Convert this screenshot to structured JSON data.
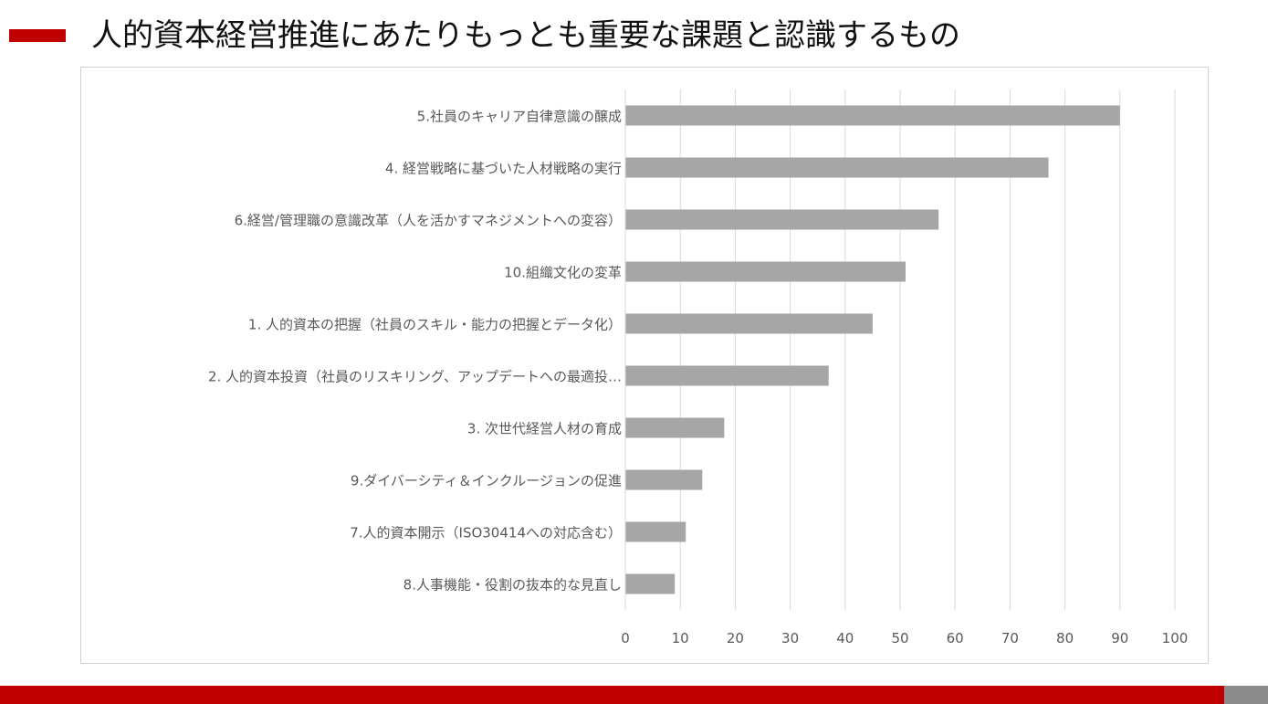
{
  "page": {
    "title": "人的資本経営推進にあたりもっとも重要な課題と認識するもの"
  },
  "colors": {
    "accent": "#c00000",
    "bar": "#a6a6a6",
    "grid": "#d9d9d9",
    "text": "#595959",
    "footer_gray": "#8c8c8c"
  },
  "chart_data": {
    "type": "bar",
    "orientation": "horizontal",
    "title": "",
    "xlabel": "",
    "ylabel": "",
    "xlim": [
      0,
      100
    ],
    "xticks": [
      0,
      10,
      20,
      30,
      40,
      50,
      60,
      70,
      80,
      90,
      100
    ],
    "grid": true,
    "categories": [
      "5.社員のキャリア自律意識の醸成",
      "4.  経営戦略に基づいた人材戦略の実行",
      "6.経営/管理職の意識改革（人を活かすマネジメントへの変容）",
      "10.組織文化の変革",
      "1.  人的資本の把握（社員のスキル・能力の把握とデータ化）",
      "2.  人的資本投資（社員のリスキリング、アップデートへの最適投…",
      "3.  次世代経営人材の育成",
      "9.ダイバーシティ＆インクルージョンの促進",
      "7.人的資本開示（ISO30414への対応含む）",
      "8.人事機能・役割の抜本的な見直し"
    ],
    "values": [
      90,
      77,
      57,
      51,
      45,
      37,
      18,
      14,
      11,
      9
    ]
  }
}
